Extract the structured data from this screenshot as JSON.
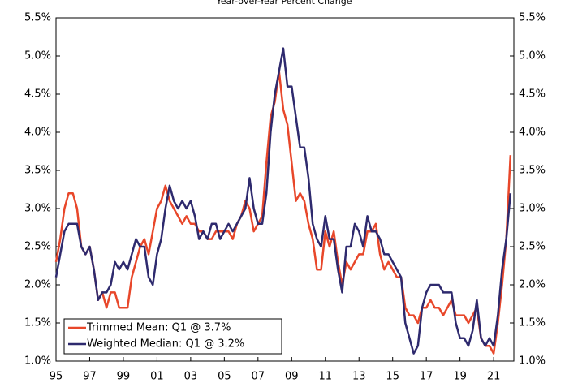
{
  "chart_data": {
    "type": "line",
    "subtitle": "Year-over-Year Percent Change",
    "x": [
      1995,
      1995.25,
      1995.5,
      1995.75,
      1996,
      1996.25,
      1996.5,
      1996.75,
      1997,
      1997.25,
      1997.5,
      1997.75,
      1998,
      1998.25,
      1998.5,
      1998.75,
      1999,
      1999.25,
      1999.5,
      1999.75,
      2000,
      2000.25,
      2000.5,
      2000.75,
      2001,
      2001.25,
      2001.5,
      2001.75,
      2002,
      2002.25,
      2002.5,
      2002.75,
      2003,
      2003.25,
      2003.5,
      2003.75,
      2004,
      2004.25,
      2004.5,
      2004.75,
      2005,
      2005.25,
      2005.5,
      2005.75,
      2006,
      2006.25,
      2006.5,
      2006.75,
      2007,
      2007.25,
      2007.5,
      2007.75,
      2008,
      2008.25,
      2008.5,
      2008.75,
      2009,
      2009.25,
      2009.5,
      2009.75,
      2010,
      2010.25,
      2010.5,
      2010.75,
      2011,
      2011.25,
      2011.5,
      2011.75,
      2012,
      2012.25,
      2012.5,
      2012.75,
      2013,
      2013.25,
      2013.5,
      2013.75,
      2014,
      2014.25,
      2014.5,
      2014.75,
      2015,
      2015.25,
      2015.5,
      2015.75,
      2016,
      2016.25,
      2016.5,
      2016.75,
      2017,
      2017.25,
      2017.5,
      2017.75,
      2018,
      2018.25,
      2018.5,
      2018.75,
      2019,
      2019.25,
      2019.5,
      2019.75,
      2020,
      2020.25,
      2020.5,
      2020.75,
      2021,
      2021.25,
      2021.5,
      2021.75,
      2022
    ],
    "series": [
      {
        "name": "Trimmed Mean: Q1 @ 3.7%",
        "color": "#e8472a",
        "values": [
          2.3,
          2.6,
          3.0,
          3.2,
          3.2,
          3.0,
          2.5,
          2.4,
          2.5,
          2.2,
          1.8,
          1.9,
          1.7,
          1.9,
          1.9,
          1.7,
          1.7,
          1.7,
          2.1,
          2.3,
          2.5,
          2.6,
          2.4,
          2.7,
          3.0,
          3.1,
          3.3,
          3.1,
          3.0,
          2.9,
          2.8,
          2.9,
          2.8,
          2.8,
          2.7,
          2.7,
          2.6,
          2.6,
          2.7,
          2.7,
          2.7,
          2.7,
          2.6,
          2.8,
          2.9,
          3.1,
          3.0,
          2.7,
          2.8,
          2.9,
          3.6,
          4.2,
          4.4,
          4.8,
          4.3,
          4.1,
          3.6,
          3.1,
          3.2,
          3.1,
          2.8,
          2.6,
          2.2,
          2.2,
          2.7,
          2.5,
          2.7,
          2.3,
          2.0,
          2.3,
          2.2,
          2.3,
          2.4,
          2.4,
          2.7,
          2.7,
          2.8,
          2.4,
          2.2,
          2.3,
          2.2,
          2.1,
          2.1,
          1.7,
          1.6,
          1.6,
          1.5,
          1.7,
          1.7,
          1.8,
          1.7,
          1.7,
          1.6,
          1.7,
          1.8,
          1.6,
          1.6,
          1.6,
          1.5,
          1.6,
          1.7,
          1.3,
          1.2,
          1.2,
          1.1,
          1.5,
          2.0,
          2.6,
          3.7
        ]
      },
      {
        "name": "Weighted Median: Q1 @ 3.2%",
        "color": "#2e2a6e",
        "values": [
          2.1,
          2.4,
          2.7,
          2.8,
          2.8,
          2.8,
          2.5,
          2.4,
          2.5,
          2.2,
          1.8,
          1.9,
          1.9,
          2.0,
          2.3,
          2.2,
          2.3,
          2.2,
          2.4,
          2.6,
          2.5,
          2.5,
          2.1,
          2.0,
          2.4,
          2.6,
          3.0,
          3.3,
          3.1,
          3.0,
          3.1,
          3.0,
          3.1,
          2.9,
          2.6,
          2.7,
          2.6,
          2.8,
          2.8,
          2.6,
          2.7,
          2.8,
          2.7,
          2.8,
          2.9,
          3.0,
          3.4,
          3.0,
          2.8,
          2.8,
          3.2,
          4.0,
          4.5,
          4.8,
          5.1,
          4.6,
          4.6,
          4.2,
          3.8,
          3.8,
          3.4,
          2.8,
          2.6,
          2.5,
          2.9,
          2.6,
          2.6,
          2.2,
          1.9,
          2.5,
          2.5,
          2.8,
          2.7,
          2.5,
          2.9,
          2.7,
          2.7,
          2.6,
          2.4,
          2.4,
          2.3,
          2.2,
          2.1,
          1.5,
          1.3,
          1.1,
          1.2,
          1.7,
          1.9,
          2.0,
          2.0,
          2.0,
          1.9,
          1.9,
          1.9,
          1.5,
          1.3,
          1.3,
          1.2,
          1.4,
          1.8,
          1.3,
          1.2,
          1.3,
          1.2,
          1.6,
          2.2,
          2.6,
          3.2
        ]
      }
    ],
    "xlim": [
      1995,
      2022.2
    ],
    "xticks": [
      {
        "value": 1995,
        "label": "95"
      },
      {
        "value": 1997,
        "label": "97"
      },
      {
        "value": 1999,
        "label": "99"
      },
      {
        "value": 2001,
        "label": "01"
      },
      {
        "value": 2003,
        "label": "03"
      },
      {
        "value": 2005,
        "label": "05"
      },
      {
        "value": 2007,
        "label": "07"
      },
      {
        "value": 2009,
        "label": "09"
      },
      {
        "value": 2011,
        "label": "11"
      },
      {
        "value": 2013,
        "label": "13"
      },
      {
        "value": 2015,
        "label": "15"
      },
      {
        "value": 2017,
        "label": "17"
      },
      {
        "value": 2019,
        "label": "19"
      },
      {
        "value": 2021,
        "label": "21"
      }
    ],
    "ylim": [
      1.0,
      5.5
    ],
    "yticks": [
      {
        "value": 1.0,
        "label": "1.0%"
      },
      {
        "value": 1.5,
        "label": "1.5%"
      },
      {
        "value": 2.0,
        "label": "2.0%"
      },
      {
        "value": 2.5,
        "label": "2.5%"
      },
      {
        "value": 3.0,
        "label": "3.0%"
      },
      {
        "value": 3.5,
        "label": "3.5%"
      },
      {
        "value": 4.0,
        "label": "4.0%"
      },
      {
        "value": 4.5,
        "label": "4.5%"
      },
      {
        "value": 5.0,
        "label": "5.0%"
      },
      {
        "value": 5.5,
        "label": "5.5%"
      }
    ],
    "y2lim": [
      1.0,
      5.5
    ],
    "y2ticks": [
      {
        "value": 1.0,
        "label": "1.0%"
      },
      {
        "value": 1.5,
        "label": "1.5%"
      },
      {
        "value": 2.0,
        "label": "2.0%"
      },
      {
        "value": 2.5,
        "label": "2.5%"
      },
      {
        "value": 3.0,
        "label": "3.0%"
      },
      {
        "value": 3.5,
        "label": "3.5%"
      },
      {
        "value": 4.0,
        "label": "4.0%"
      },
      {
        "value": 4.5,
        "label": "4.5%"
      },
      {
        "value": 5.0,
        "label": "5.0%"
      },
      {
        "value": 5.5,
        "label": "5.5%"
      }
    ],
    "legend": "lower left"
  }
}
